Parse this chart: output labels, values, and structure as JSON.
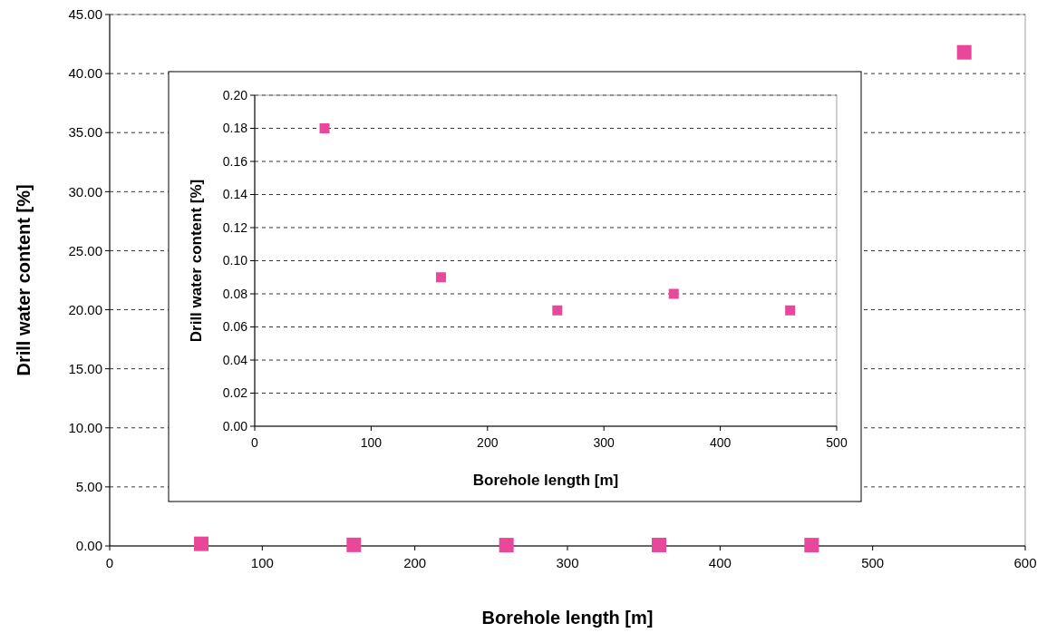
{
  "chart_data": [
    {
      "type": "scatter",
      "xlabel": "Borehole length [m]",
      "ylabel": "Drill water content [%]",
      "xlim": [
        0,
        600
      ],
      "xticks": [
        0,
        100,
        200,
        300,
        400,
        500,
        600
      ],
      "ylim": [
        0,
        45
      ],
      "yticks": [
        {
          "value": 0,
          "label": "0.00"
        },
        {
          "value": 5,
          "label": "5.00"
        },
        {
          "value": 10,
          "label": "10.00"
        },
        {
          "value": 15,
          "label": "15.00"
        },
        {
          "value": 20,
          "label": "20.00"
        },
        {
          "value": 25,
          "label": "25.00"
        },
        {
          "value": 30,
          "label": "30.00"
        },
        {
          "value": 35,
          "label": "35.00"
        },
        {
          "value": 40,
          "label": "40.00"
        },
        {
          "value": 45,
          "label": "45.00"
        }
      ],
      "grid": "y",
      "marker": "square",
      "series": [
        {
          "color": "#e8479a",
          "x": [
            60,
            160,
            260,
            360,
            460,
            560
          ],
          "values": [
            0.18,
            0.09,
            0.07,
            0.08,
            0.07,
            41.8
          ]
        }
      ]
    },
    {
      "type": "scatter",
      "xlabel": "Borehole length [m]",
      "ylabel": "Drill water content [%]",
      "xlim": [
        0,
        500
      ],
      "xticks": [
        0,
        100,
        200,
        300,
        400,
        500
      ],
      "ylim": [
        0,
        0.2
      ],
      "yticks": [
        {
          "value": 0,
          "label": "0.00"
        },
        {
          "value": 0.02,
          "label": "0.02"
        },
        {
          "value": 0.04,
          "label": "0.04"
        },
        {
          "value": 0.06,
          "label": "0.06"
        },
        {
          "value": 0.08,
          "label": "0.08"
        },
        {
          "value": 0.1,
          "label": "0.10"
        },
        {
          "value": 0.12,
          "label": "0.12"
        },
        {
          "value": 0.14,
          "label": "0.14"
        },
        {
          "value": 0.16,
          "label": "0.16"
        },
        {
          "value": 0.18,
          "label": "0.18"
        },
        {
          "value": 0.2,
          "label": "0.20"
        }
      ],
      "grid": "y",
      "marker": "square",
      "series": [
        {
          "color": "#e8479a",
          "x": [
            60,
            160,
            260,
            360,
            460
          ],
          "values": [
            0.18,
            0.09,
            0.07,
            0.08,
            0.07
          ]
        }
      ]
    }
  ]
}
